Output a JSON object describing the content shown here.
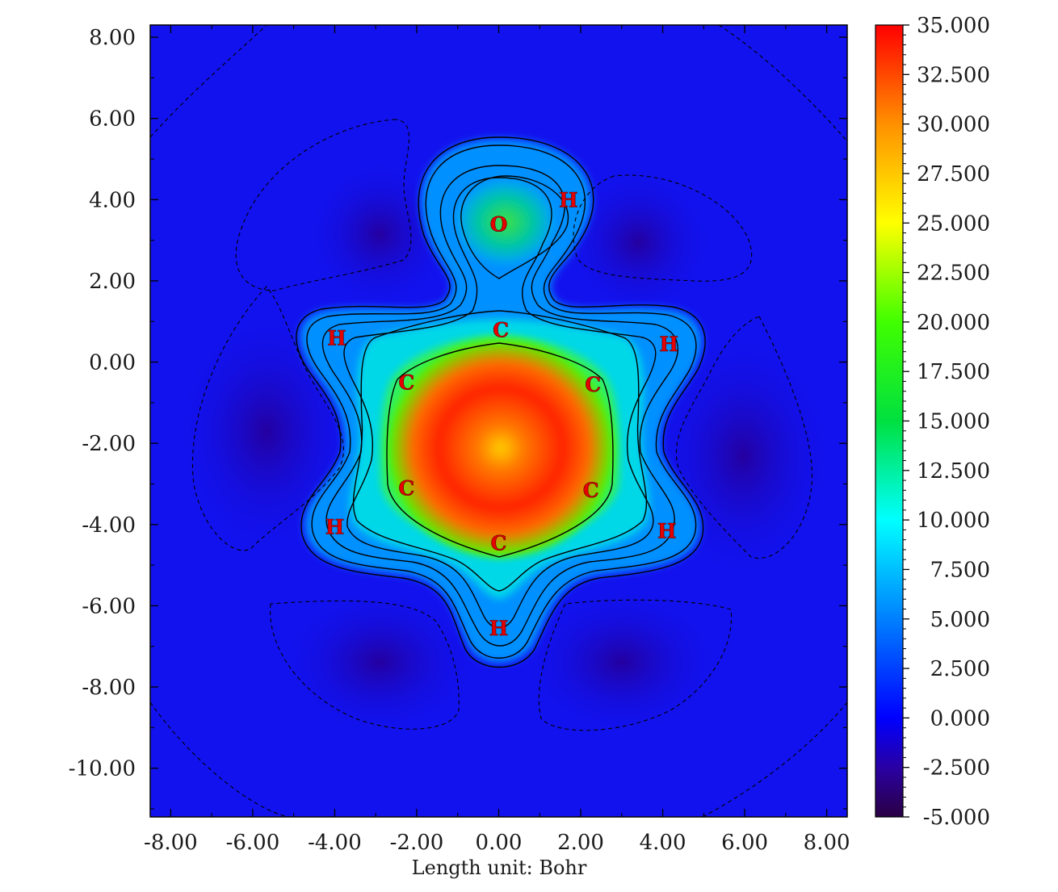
{
  "chart_data": {
    "type": "heatmap",
    "xlabel": "Length unit: Bohr",
    "ylabel": "",
    "xlim": [
      -8.5,
      8.5
    ],
    "ylim": [
      -11.2,
      8.3
    ],
    "x_ticks": [
      "-8.00",
      "-6.00",
      "-4.00",
      "-2.00",
      "0.00",
      "2.00",
      "4.00",
      "6.00",
      "8.00"
    ],
    "y_ticks": [
      "8.00",
      "6.00",
      "4.00",
      "2.00",
      "0.00",
      "-2.00",
      "-4.00",
      "-6.00",
      "-8.00",
      "-10.00"
    ],
    "colorbar": {
      "range": [
        -5.0,
        35.0
      ],
      "ticks": [
        "35.000",
        "32.500",
        "30.000",
        "27.500",
        "25.000",
        "22.500",
        "20.000",
        "17.500",
        "15.000",
        "12.500",
        "10.000",
        "7.500",
        "5.000",
        "2.500",
        "0.000",
        "-2.500",
        "-5.000"
      ]
    },
    "atoms": [
      {
        "label": "O",
        "x": 0.0,
        "y": 3.4
      },
      {
        "label": "H",
        "x": 1.7,
        "y": 4.0
      },
      {
        "label": "C",
        "x": 0.05,
        "y": 0.8
      },
      {
        "label": "C",
        "x": -2.25,
        "y": -0.5
      },
      {
        "label": "C",
        "x": 2.3,
        "y": -0.55
      },
      {
        "label": "C",
        "x": -2.25,
        "y": -3.1
      },
      {
        "label": "C",
        "x": 2.25,
        "y": -3.15
      },
      {
        "label": "C",
        "x": 0.0,
        "y": -4.45
      },
      {
        "label": "H",
        "x": -3.95,
        "y": 0.6
      },
      {
        "label": "H",
        "x": 4.15,
        "y": 0.45
      },
      {
        "label": "H",
        "x": -4.0,
        "y": -4.05
      },
      {
        "label": "H",
        "x": 4.1,
        "y": -4.15
      },
      {
        "label": "H",
        "x": 0.0,
        "y": -6.55
      }
    ],
    "colors": {
      "background": "#1010f0",
      "ring_center": "#ff2a00",
      "atom_label": "#e60000"
    }
  }
}
